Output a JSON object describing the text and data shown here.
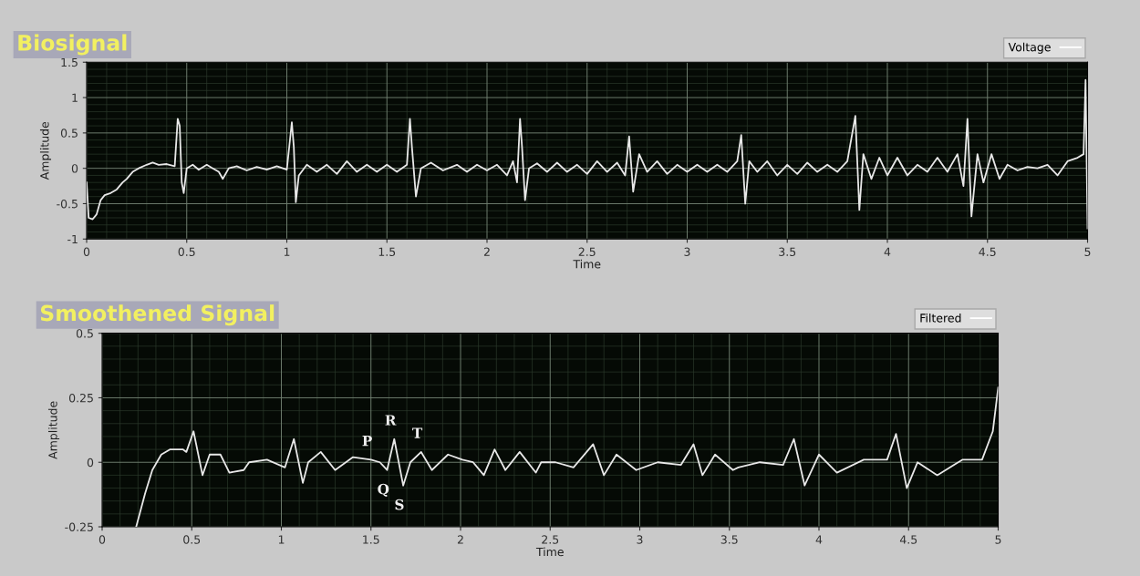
{
  "chart_data": [
    {
      "type": "line",
      "title": "Biosignal",
      "xlabel": "Time",
      "ylabel": "Amplitude",
      "xlim": [
        0,
        5
      ],
      "ylim": [
        -1,
        1.5
      ],
      "xticks": [
        0,
        0.5,
        1,
        1.5,
        2,
        2.5,
        3,
        3.5,
        4,
        4.5,
        5
      ],
      "yticks": [
        -1,
        -0.5,
        0,
        0.5,
        1,
        1.5
      ],
      "grid": true,
      "legend": "top right",
      "marker": "none",
      "line_style": "solid",
      "series": [
        {
          "name": "Voltage",
          "color": "#e8e8e8",
          "x": [
            0,
            0.01,
            0.03,
            0.05,
            0.07,
            0.09,
            0.12,
            0.15,
            0.18,
            0.2,
            0.23,
            0.26,
            0.3,
            0.33,
            0.36,
            0.4,
            0.44,
            0.455,
            0.465,
            0.475,
            0.485,
            0.5,
            0.53,
            0.56,
            0.6,
            0.63,
            0.66,
            0.68,
            0.71,
            0.75,
            0.8,
            0.85,
            0.9,
            0.95,
            1.0,
            1.025,
            1.035,
            1.045,
            1.06,
            1.1,
            1.15,
            1.2,
            1.25,
            1.3,
            1.35,
            1.4,
            1.45,
            1.5,
            1.55,
            1.6,
            1.615,
            1.625,
            1.645,
            1.67,
            1.72,
            1.78,
            1.85,
            1.9,
            1.95,
            2.0,
            2.05,
            2.1,
            2.13,
            2.15,
            2.165,
            2.175,
            2.19,
            2.21,
            2.25,
            2.3,
            2.35,
            2.4,
            2.45,
            2.5,
            2.55,
            2.6,
            2.65,
            2.69,
            2.71,
            2.73,
            2.76,
            2.8,
            2.85,
            2.9,
            2.95,
            3.0,
            3.05,
            3.1,
            3.15,
            3.2,
            3.25,
            3.27,
            3.29,
            3.31,
            3.35,
            3.4,
            3.45,
            3.5,
            3.55,
            3.6,
            3.65,
            3.7,
            3.75,
            3.8,
            3.84,
            3.86,
            3.88,
            3.92,
            3.96,
            4.0,
            4.05,
            4.1,
            4.15,
            4.2,
            4.25,
            4.3,
            4.35,
            4.38,
            4.4,
            4.42,
            4.45,
            4.48,
            4.52,
            4.56,
            4.6,
            4.65,
            4.7,
            4.75,
            4.8,
            4.85,
            4.9,
            4.95,
            4.98,
            4.99,
            5.0
          ],
          "values": [
            -0.2,
            -0.7,
            -0.72,
            -0.65,
            -0.45,
            -0.38,
            -0.35,
            -0.3,
            -0.2,
            -0.15,
            -0.05,
            0,
            0.05,
            0.08,
            0.05,
            0.06,
            0.03,
            0.7,
            0.6,
            -0.2,
            -0.35,
            0,
            0.05,
            -0.02,
            0.05,
            0,
            -0.05,
            -0.15,
            0,
            0.03,
            -0.03,
            0.02,
            -0.02,
            0.03,
            -0.02,
            0.65,
            0.3,
            -0.48,
            -0.1,
            0.05,
            -0.05,
            0.05,
            -0.08,
            0.1,
            -0.05,
            0.05,
            -0.05,
            0.05,
            -0.05,
            0.05,
            0.7,
            0.3,
            -0.4,
            0,
            0.08,
            -0.03,
            0.05,
            -0.05,
            0.05,
            -0.03,
            0.05,
            -0.1,
            0.1,
            -0.2,
            0.7,
            0.3,
            -0.45,
            0,
            0.07,
            -0.05,
            0.08,
            -0.05,
            0.05,
            -0.08,
            0.1,
            -0.05,
            0.08,
            -0.1,
            0.45,
            -0.33,
            0.2,
            -0.05,
            0.1,
            -0.08,
            0.05,
            -0.05,
            0.05,
            -0.05,
            0.05,
            -0.05,
            0.1,
            0.47,
            -0.5,
            0.1,
            -0.05,
            0.1,
            -0.1,
            0.05,
            -0.08,
            0.08,
            -0.05,
            0.05,
            -0.05,
            0.1,
            0.74,
            -0.59,
            0.2,
            -0.15,
            0.15,
            -0.1,
            0.15,
            -0.1,
            0.05,
            -0.05,
            0.15,
            -0.05,
            0.2,
            -0.25,
            0.7,
            -0.68,
            0.2,
            -0.2,
            0.2,
            -0.15,
            0.05,
            -0.03,
            0.02,
            0,
            0.05,
            -0.1,
            0.1,
            0.15,
            0.2,
            1.25,
            -0.85
          ]
        }
      ]
    },
    {
      "type": "line",
      "title": "Smoothened Signal",
      "xlabel": "Time",
      "ylabel": "Amplitude",
      "xlim": [
        0,
        5
      ],
      "ylim": [
        -0.25,
        0.5
      ],
      "xticks": [
        0,
        0.5,
        1,
        1.5,
        2,
        2.5,
        3,
        3.5,
        4,
        4.5,
        5
      ],
      "yticks": [
        -0.25,
        0,
        0.25,
        0.5
      ],
      "grid": true,
      "legend": "top right",
      "marker": "none",
      "line_style": "solid",
      "annotations": [
        {
          "text": "P",
          "x": 1.5,
          "y": 0.01
        },
        {
          "text": "R",
          "x": 1.63,
          "y": 0.09
        },
        {
          "text": "T",
          "x": 1.78,
          "y": 0.04
        },
        {
          "text": "Q",
          "x": 1.59,
          "y": -0.03
        },
        {
          "text": "S",
          "x": 1.68,
          "y": -0.09
        }
      ],
      "series": [
        {
          "name": "Filtered",
          "color": "#e8e8e8",
          "x": [
            0.19,
            0.24,
            0.28,
            0.33,
            0.38,
            0.45,
            0.47,
            0.51,
            0.56,
            0.6,
            0.66,
            0.71,
            0.79,
            0.82,
            0.92,
            1.02,
            1.07,
            1.12,
            1.15,
            1.22,
            1.3,
            1.4,
            1.5,
            1.55,
            1.59,
            1.63,
            1.68,
            1.72,
            1.78,
            1.84,
            1.93,
            2.01,
            2.07,
            2.13,
            2.19,
            2.25,
            2.33,
            2.42,
            2.45,
            2.53,
            2.63,
            2.74,
            2.8,
            2.87,
            2.98,
            3.1,
            3.23,
            3.3,
            3.35,
            3.42,
            3.52,
            3.55,
            3.67,
            3.8,
            3.86,
            3.92,
            4.0,
            4.1,
            4.25,
            4.38,
            4.43,
            4.49,
            4.55,
            4.66,
            4.8,
            4.91,
            4.97,
            5.0
          ],
          "values": [
            -0.25,
            -0.12,
            -0.03,
            0.03,
            0.05,
            0.05,
            0.04,
            0.12,
            -0.05,
            0.03,
            0.03,
            -0.04,
            -0.03,
            0,
            0.01,
            -0.02,
            0.09,
            -0.08,
            0,
            0.04,
            -0.03,
            0.02,
            0.01,
            0,
            -0.03,
            0.09,
            -0.09,
            0,
            0.04,
            -0.03,
            0.03,
            0.01,
            0,
            -0.05,
            0.05,
            -0.03,
            0.04,
            -0.04,
            0,
            0,
            -0.02,
            0.07,
            -0.05,
            0.03,
            -0.03,
            0,
            -0.01,
            0.07,
            -0.05,
            0.03,
            -0.03,
            -0.02,
            0,
            -0.01,
            0.09,
            -0.09,
            0.03,
            -0.04,
            0.01,
            0.01,
            0.11,
            -0.1,
            0,
            -0.05,
            0.01,
            0.01,
            0.12,
            0.29
          ]
        }
      ]
    }
  ]
}
